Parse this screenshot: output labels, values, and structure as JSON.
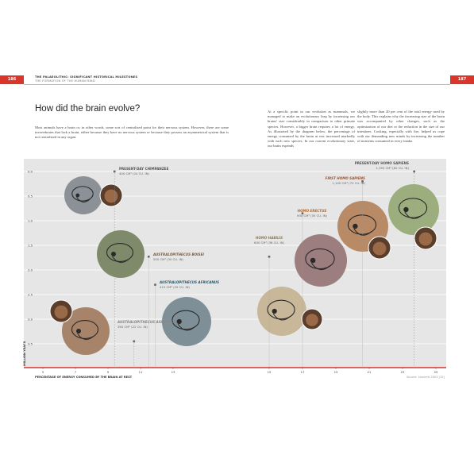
{
  "header": {
    "page_left": "186",
    "page_right": "187",
    "section": "THE PALAEOLITHIC: SIGNIFICANT HISTORICAL MILESTONES",
    "subsection": "THE FORMATION OF THE HUMAN MIND"
  },
  "title": "How did the brain evolve?",
  "paragraphs": [
    "Most animals have a brain or, in other words, some sort of centralized point for their nervous system. However, there are some invertebrates that lack a brain, either because they have no nervous system or because they possess an asymmetrical system that is not centralized in any organ.",
    "At a specific point in our evolution as mammals, we managed to make an evolutionary leap by increasing our brains' size considerably in comparison to other primate species. However, a bigger brain requires a lot of energy. As illustrated by the diagram below, the percentage of energy consumed by the brain at rest increased markedly with each new species. In our current evolutionary state, our brain expends",
    "slightly more than 20 per cent of the total energy used by the body. This explains why the increasing size of the brain was accompanied by other changes, such as the optimization of our diet or the reduction in the size of our intestines. Cooking, especially with fire, helped us cope with our demanding new minds by increasing the number of nutrients consumed in every intake."
  ],
  "chart_data": {
    "type": "scatter",
    "x_label": "PERCENTAGE OF ENERGY CONSUMED BY THE BRAIN AT REST",
    "y_label": "MILLION YEARS",
    "source": "Source: Leonard 2003 [15]",
    "xlim": [
      5,
      25
    ],
    "x_break": [
      13,
      15
    ],
    "xticks": [
      5,
      7,
      9,
      11,
      13,
      15,
      17,
      19,
      21,
      23,
      25
    ],
    "ylim": [
      0,
      4
    ],
    "y_reversed": true,
    "yticks": [
      {
        "value": 0,
        "label": "0.0"
      },
      0.5,
      {
        "value": 1,
        "label": "1.0"
      },
      1.5,
      {
        "value": 2,
        "label": "2.0"
      },
      2.5,
      {
        "value": 3,
        "label": "3.0"
      },
      3.5
    ],
    "grid": true,
    "points": [
      {
        "name": "PRESENT-DAY CHIMPANZEE",
        "detail": "400 CM³ (24 CU. IN)",
        "color": "#8c9097",
        "x": 9.4,
        "y": 0
      },
      {
        "name": "AUSTRALOPITHECUS BOISEI",
        "detail": "500 CM³ (30 CU. IN)",
        "color": "#7f8a6a",
        "x": 11.5,
        "y": 1.73
      },
      {
        "name": "AUSTRALOPITHECUS AFRICANUS",
        "detail": "415 CM³ (25 CU. IN)",
        "color": "#7e8f97",
        "x": 11.9,
        "y": 2.3
      },
      {
        "name": "AUSTRALOPITHECUS AFARENSIS",
        "detail": "365 CM³ (22 CU. IN)",
        "color": "#a7836a",
        "x": 10.6,
        "y": 3.45
      },
      {
        "name": "HOMO HABILIS",
        "detail": "600 CM³ (36 CU. IN)",
        "color": "#c8b799",
        "x": 15,
        "y": 1.73
      },
      {
        "name": "HOMO ERECTUS",
        "detail": "900 CM³ (55 CU. IN)",
        "color": "#9c7e7e",
        "x": 17,
        "y": 0.85
      },
      {
        "name": "FIRST HOMO SAPIENS",
        "detail": "1,100 CM³ (70 CU. IN)",
        "color": "#b88a66",
        "x": 20.6,
        "y": 0.2
      },
      {
        "name": "PRESENT-DAY HOMO SAPIENS",
        "detail": "1,350 CM³ (82 CU. IN)",
        "color": "#9cae7e",
        "x": 23.7,
        "y": 0
      }
    ]
  }
}
